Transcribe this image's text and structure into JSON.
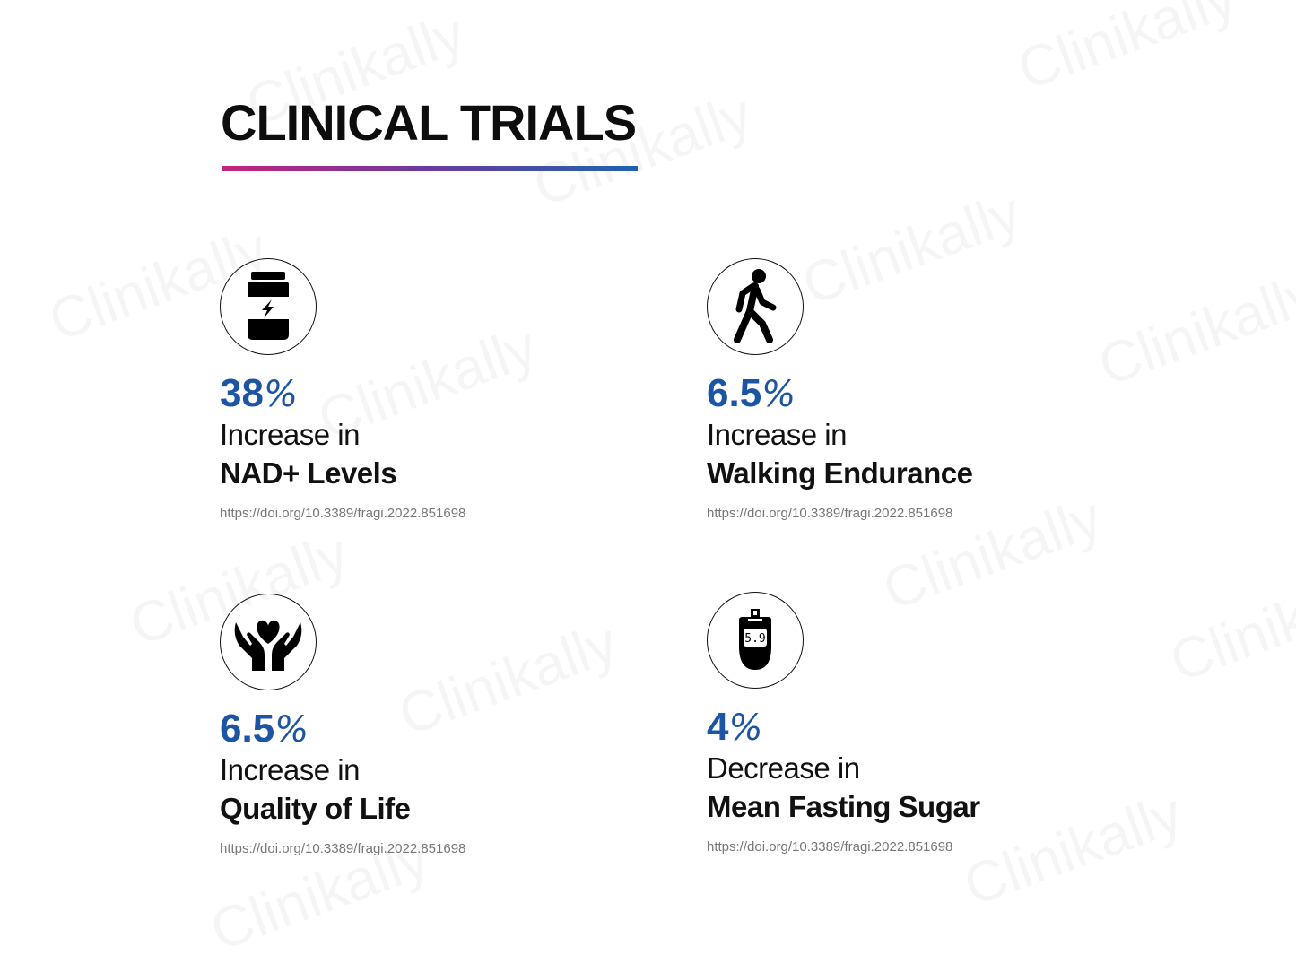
{
  "watermark": "Clinikally",
  "title": "CLINICAL TRIALS",
  "colors": {
    "accent_blue": "#1b55a3",
    "gradient_start": "#c4237c",
    "gradient_end": "#1e63b3",
    "url_gray": "#777777"
  },
  "cards": [
    {
      "icon": "supplement-jar-icon",
      "value": "38",
      "unit": "%",
      "line1": "Increase in",
      "line2": "NAD+ Levels",
      "url": "https://doi.org/10.3389/fragi.2022.851698"
    },
    {
      "icon": "walking-person-icon",
      "value": "6.5",
      "unit": "%",
      "line1": "Increase in",
      "line2": "Walking Endurance",
      "url": "https://doi.org/10.3389/fragi.2022.851698"
    },
    {
      "icon": "hands-heart-icon",
      "value": "6.5",
      "unit": "%",
      "line1": "Increase in",
      "line2": "Quality of Life",
      "url": "https://doi.org/10.3389/fragi.2022.851698"
    },
    {
      "icon": "glucometer-icon",
      "value": "4",
      "unit": "%",
      "line1": "Decrease in",
      "line2": "Mean Fasting Sugar",
      "url": "https://doi.org/10.3389/fragi.2022.851698",
      "meter_reading": "5.9"
    }
  ]
}
